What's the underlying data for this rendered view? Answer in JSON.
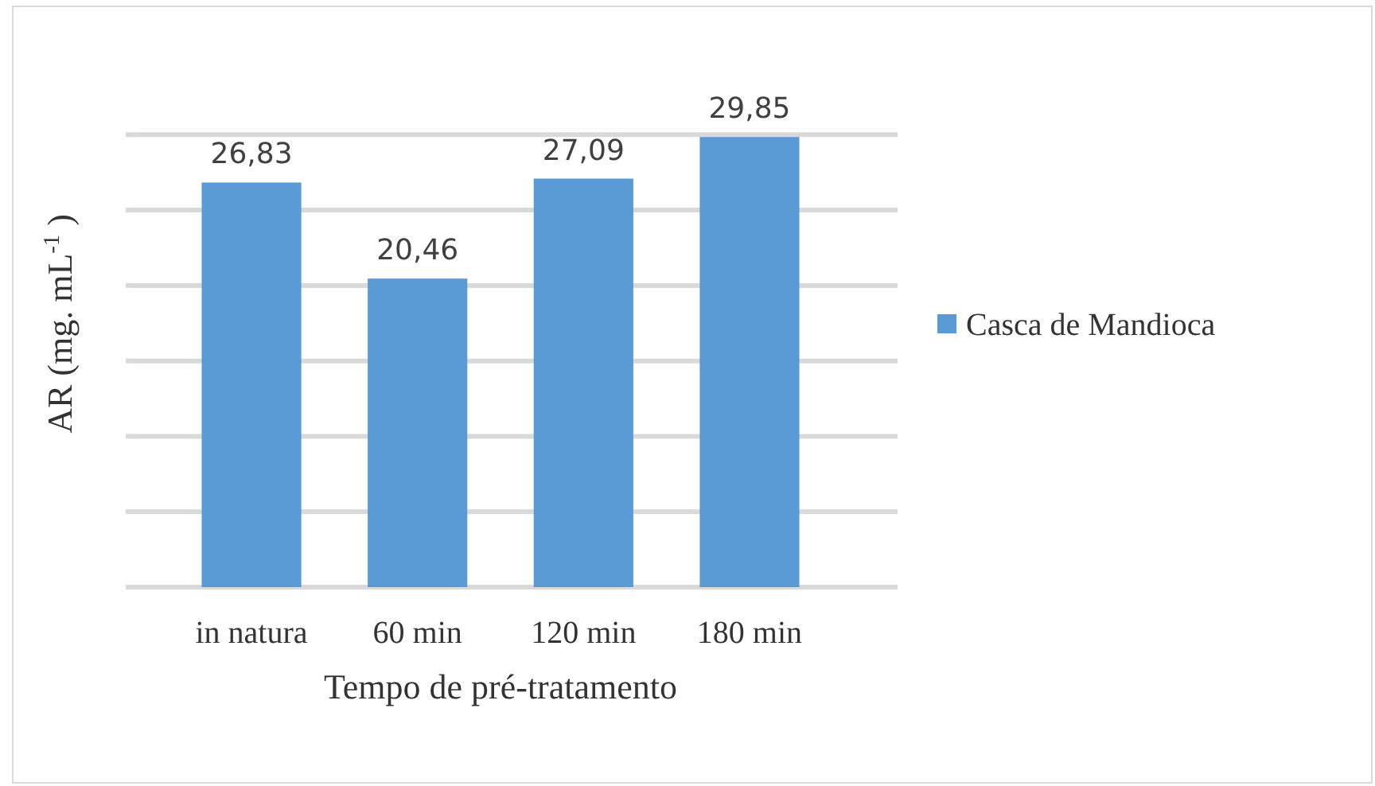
{
  "chart_data": {
    "type": "bar",
    "xlabel": "Tempo de pré-tratamento",
    "ylabel": "AR (mg. mL$^{-1}$ )",
    "categories": [
      "in natura",
      "60 min",
      "120 min",
      "180 min"
    ],
    "series": [
      {
        "name": "Casca de Mandioca",
        "color": "#5b9bd5",
        "values": [
          26.83,
          20.46,
          27.09,
          29.85
        ],
        "value_labels": [
          "26,83",
          "20,46",
          "27,09",
          "29,85"
        ]
      }
    ],
    "tick_labels": "x",
    "grid": "y",
    "legend": "right"
  }
}
